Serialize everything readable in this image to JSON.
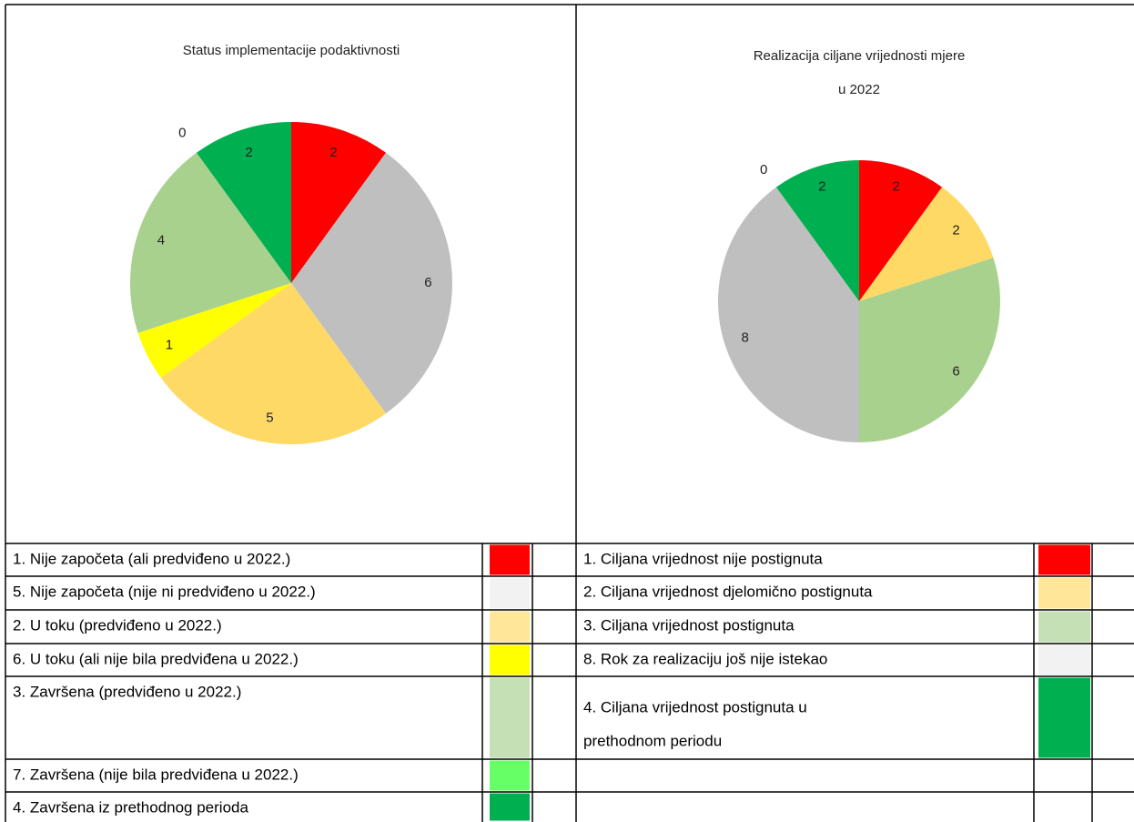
{
  "chart_data": [
    {
      "type": "pie",
      "title_lines": [
        "Status implementacije podaktivnosti"
      ],
      "values": [
        2,
        6,
        5,
        1,
        4,
        0,
        2
      ],
      "colors": [
        "#ff0000",
        "#bfbfbf",
        "#ffd966",
        "#ffff00",
        "#a9d18e",
        "#66ff66",
        "#00b050"
      ]
    },
    {
      "type": "pie",
      "title_lines": [
        "Realizacija ciljane vrijednosti mjere",
        "u 2022"
      ],
      "values": [
        2,
        2,
        6,
        8,
        0,
        2
      ],
      "colors": [
        "#ff0000",
        "#ffd966",
        "#a9d18e",
        "#bfbfbf",
        "#f2f2f2",
        "#00b050"
      ]
    }
  ],
  "legends": [
    [
      {
        "lines": [
          "1. Nije započeta (ali predviđeno u 2022.)"
        ],
        "color": "#ff0000"
      },
      {
        "lines": [
          "5. Nije započeta (nije ni predviđeno u 2022.)"
        ],
        "color": "#f2f2f2"
      },
      {
        "lines": [
          "2. U toku (predviđeno u 2022.)"
        ],
        "color": "#ffe699"
      },
      {
        "lines": [
          "6. U toku (ali nije bila predviđena u 2022.)"
        ],
        "color": "#ffff00"
      },
      {
        "lines": [
          "3. Završena (predviđeno u 2022.)"
        ],
        "color": "#c5e0b4"
      },
      {
        "lines": [
          "7. Završena (nije bila predviđena u 2022.)"
        ],
        "color": "#66ff66"
      },
      {
        "lines": [
          "4. Završena iz prethodnog perioda"
        ],
        "color": "#00b050"
      }
    ],
    [
      {
        "lines": [
          "1. Ciljana vrijednost nije postignuta"
        ],
        "color": "#ff0000"
      },
      {
        "lines": [
          "2. Ciljana vrijednost djelomično postignuta"
        ],
        "color": "#ffe699"
      },
      {
        "lines": [
          "3. Ciljana vrijednost postignuta"
        ],
        "color": "#c5e0b4"
      },
      {
        "lines": [
          "8. Rok za realizaciju još nije istekao"
        ],
        "color": "#f2f2f2"
      },
      {
        "lines": [
          "4. Ciljana vrijednost postignuta u",
          "prethodnom periodu"
        ],
        "color": "#00b050"
      }
    ]
  ]
}
